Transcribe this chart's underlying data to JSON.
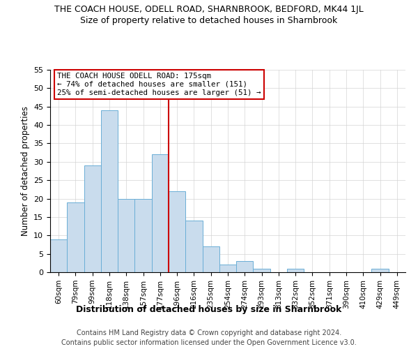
{
  "title": "THE COACH HOUSE, ODELL ROAD, SHARNBROOK, BEDFORD, MK44 1JL",
  "subtitle": "Size of property relative to detached houses in Sharnbrook",
  "xlabel": "Distribution of detached houses by size in Sharnbrook",
  "ylabel": "Number of detached properties",
  "categories": [
    "60sqm",
    "79sqm",
    "99sqm",
    "118sqm",
    "138sqm",
    "157sqm",
    "177sqm",
    "196sqm",
    "216sqm",
    "235sqm",
    "254sqm",
    "274sqm",
    "293sqm",
    "313sqm",
    "332sqm",
    "352sqm",
    "371sqm",
    "390sqm",
    "410sqm",
    "429sqm",
    "449sqm"
  ],
  "values": [
    9,
    19,
    29,
    44,
    20,
    20,
    32,
    22,
    14,
    7,
    2,
    3,
    1,
    0,
    1,
    0,
    0,
    0,
    0,
    1,
    0
  ],
  "bar_color": "#c9dced",
  "bar_edge_color": "#6aaed6",
  "ref_bin_index": 6,
  "reference_line_color": "#cc0000",
  "ylim": [
    0,
    55
  ],
  "yticks": [
    0,
    5,
    10,
    15,
    20,
    25,
    30,
    35,
    40,
    45,
    50,
    55
  ],
  "annotation_title": "THE COACH HOUSE ODELL ROAD: 175sqm",
  "annotation_line1": "← 74% of detached houses are smaller (151)",
  "annotation_line2": "25% of semi-detached houses are larger (51) →",
  "annotation_box_color": "#ffffff",
  "annotation_box_edge": "#cc0000",
  "footnote1": "Contains HM Land Registry data © Crown copyright and database right 2024.",
  "footnote2": "Contains public sector information licensed under the Open Government Licence v3.0.",
  "background_color": "#ffffff",
  "grid_color": "#d4d4d4"
}
